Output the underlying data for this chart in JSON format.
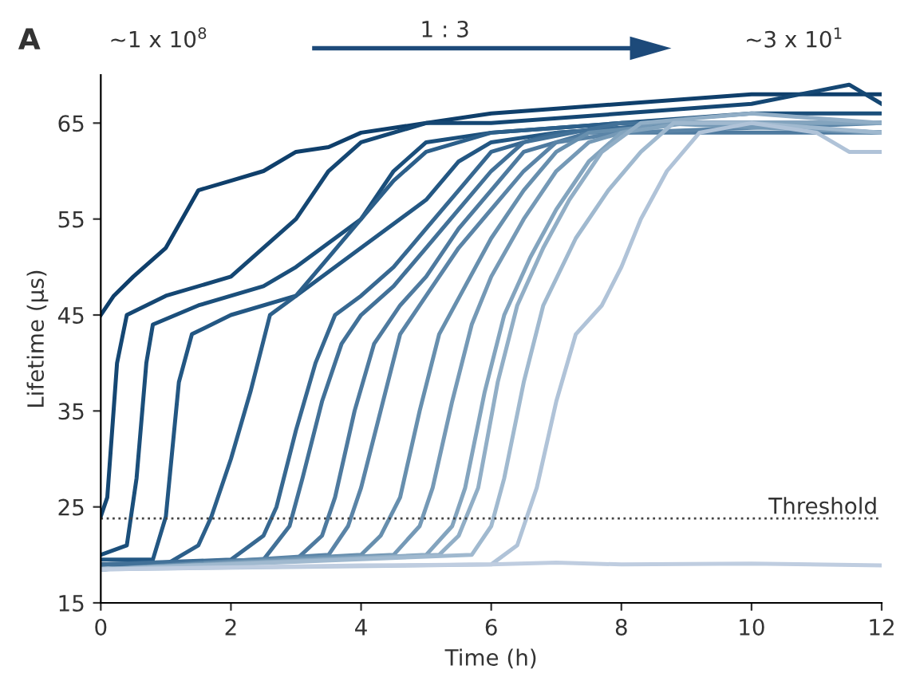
{
  "chart_data": {
    "type": "line",
    "xlabel": "Time (h)",
    "ylabel": "Lifetime (µs)",
    "xlim": [
      0,
      12
    ],
    "ylim": [
      15,
      70
    ],
    "xticks": [
      0,
      2,
      4,
      6,
      8,
      10,
      12
    ],
    "yticks": [
      15,
      25,
      35,
      45,
      55,
      65
    ],
    "grid": false,
    "marker": "none",
    "line_style": "solid",
    "annotations": [
      "A",
      "~1 x 10$^{8}$",
      "1 : 3",
      "~3 x 10$^{1}$"
    ],
    "ref_lines": [
      {
        "axis": "y",
        "value": 23.8,
        "label": "Threshold",
        "color": "#444444",
        "line_style": "dotted"
      }
    ],
    "series": [
      {
        "color": "#0f3f6b",
        "x": [
          0,
          0.2,
          0.5,
          1,
          1.5,
          2,
          2.5,
          3,
          3.5,
          4,
          5,
          6,
          7,
          8,
          9,
          10,
          11,
          12
        ],
        "values": [
          45,
          47,
          49,
          52,
          58,
          59,
          60,
          62,
          62.5,
          64,
          65,
          66,
          66.5,
          67,
          67.5,
          68,
          68,
          68
        ]
      },
      {
        "color": "#154773",
        "x": [
          0,
          0.1,
          0.25,
          0.4,
          1,
          2,
          3,
          3.5,
          4,
          5,
          6,
          8,
          10,
          11.5,
          12
        ],
        "values": [
          24,
          26,
          40,
          45,
          47,
          49,
          55,
          60,
          63,
          65,
          65,
          66,
          67,
          69,
          67
        ]
      },
      {
        "color": "#1b4f7b",
        "x": [
          0,
          0.4,
          0.55,
          0.7,
          0.8,
          1.5,
          2.5,
          3,
          4,
          4.5,
          5,
          6,
          8,
          10,
          12
        ],
        "values": [
          20,
          21,
          28,
          40,
          44,
          46,
          48,
          50,
          55,
          60,
          63,
          64,
          65,
          66,
          66
        ]
      },
      {
        "color": "#235783",
        "x": [
          0,
          0.8,
          1,
          1.2,
          1.4,
          2,
          3,
          4,
          5,
          5.5,
          6,
          7,
          9,
          12
        ],
        "values": [
          19.5,
          19.5,
          24,
          38,
          43,
          45,
          47,
          52,
          57,
          61,
          63,
          64,
          65,
          65
        ]
      },
      {
        "color": "#2c5f8a",
        "x": [
          0,
          1,
          1.5,
          1.7,
          2,
          2.3,
          2.6,
          3,
          3.5,
          4,
          4.5,
          5,
          6,
          8,
          12
        ],
        "values": [
          19,
          19,
          21,
          24,
          30,
          37,
          45,
          47,
          51,
          55,
          59,
          62,
          64,
          65,
          65
        ]
      },
      {
        "color": "#376891",
        "x": [
          0,
          2,
          2.5,
          2.7,
          3,
          3.3,
          3.6,
          4,
          4.5,
          5,
          5.5,
          6,
          7,
          9,
          12
        ],
        "values": [
          19,
          19.5,
          22,
          25,
          33,
          40,
          45,
          47,
          50,
          54,
          58,
          62,
          64,
          65,
          64
        ]
      },
      {
        "color": "#427198",
        "x": [
          0,
          2.5,
          2.9,
          3.1,
          3.4,
          3.7,
          4,
          4.5,
          5,
          5.5,
          6,
          6.5,
          8,
          12
        ],
        "values": [
          19,
          19.5,
          23,
          28,
          36,
          42,
          45,
          48,
          52,
          56,
          60,
          63,
          65,
          65
        ]
      },
      {
        "color": "#4e7a9f",
        "x": [
          0,
          3,
          3.4,
          3.6,
          3.9,
          4.2,
          4.6,
          5,
          5.5,
          6,
          6.5,
          7.5,
          12
        ],
        "values": [
          18.5,
          19.5,
          22,
          26,
          35,
          42,
          46,
          49,
          54,
          58,
          62,
          64,
          64
        ]
      },
      {
        "color": "#5a84a7",
        "x": [
          0,
          3.5,
          3.8,
          4,
          4.3,
          4.6,
          5,
          5.5,
          6,
          6.5,
          7,
          8,
          12
        ],
        "values": [
          18.5,
          20,
          23,
          27,
          35,
          43,
          47,
          52,
          56,
          60,
          63,
          64,
          65
        ]
      },
      {
        "color": "#678fae",
        "x": [
          0,
          4,
          4.3,
          4.6,
          4.9,
          5.2,
          5.6,
          6,
          6.5,
          7,
          7.5,
          9,
          12
        ],
        "values": [
          18.5,
          20,
          22,
          26,
          35,
          43,
          48,
          53,
          58,
          62,
          64,
          65,
          64
        ]
      },
      {
        "color": "#7599b6",
        "x": [
          0,
          4.5,
          4.9,
          5.1,
          5.4,
          5.7,
          6,
          6.5,
          7,
          7.5,
          8.5,
          12
        ],
        "values": [
          18.5,
          20,
          23,
          27,
          36,
          44,
          49,
          55,
          60,
          63,
          65,
          64
        ]
      },
      {
        "color": "#83a4be",
        "x": [
          0,
          5,
          5.4,
          5.6,
          5.9,
          6.2,
          6.6,
          7,
          7.5,
          8,
          9,
          12
        ],
        "values": [
          18.5,
          20,
          23,
          27,
          37,
          45,
          51,
          56,
          61,
          64,
          65,
          65
        ]
      },
      {
        "color": "#91aec6",
        "x": [
          0,
          5.2,
          5.5,
          5.8,
          6.1,
          6.4,
          6.8,
          7.2,
          7.7,
          8.3,
          10,
          12
        ],
        "values": [
          18.5,
          20,
          22,
          27,
          38,
          46,
          52,
          57,
          62,
          65,
          66,
          65
        ]
      },
      {
        "color": "#a0b9cf",
        "x": [
          0,
          5.7,
          6,
          6.2,
          6.5,
          6.8,
          7.3,
          7.8,
          8.3,
          8.8,
          10,
          12
        ],
        "values": [
          18.5,
          20,
          23,
          28,
          38,
          46,
          53,
          58,
          62,
          65,
          65,
          64
        ]
      },
      {
        "color": "#b0c3d8",
        "x": [
          0,
          6,
          6.4,
          6.7,
          7,
          7.3,
          7.7,
          8,
          8.3,
          8.7,
          9.2,
          10,
          11,
          11.5,
          12
        ],
        "values": [
          18.5,
          19,
          21,
          27,
          36,
          43,
          46,
          50,
          55,
          60,
          64,
          65,
          64,
          62,
          62
        ]
      },
      {
        "color": "#bfcde0",
        "x": [
          0,
          2,
          4,
          6,
          7,
          8,
          10,
          12
        ],
        "values": [
          18.5,
          18.7,
          18.9,
          19,
          19.2,
          19,
          19.1,
          18.9
        ]
      }
    ]
  }
}
